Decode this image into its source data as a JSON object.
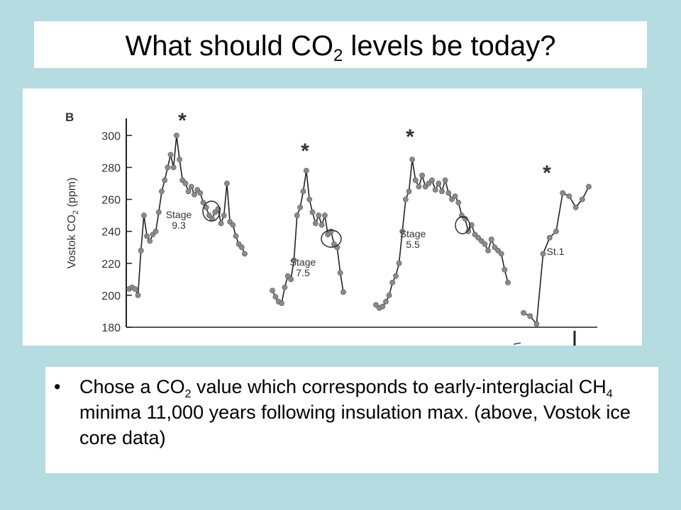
{
  "slide": {
    "title_main": "What should CO",
    "title_sub": "2",
    "title_rest": " levels be today?",
    "bullet": {
      "marker": "•",
      "part1": "Chose a CO",
      "sub1": "2",
      "part2": " value which corresponds to early-interglacial CH",
      "sub2": "4",
      "part3": " minima 11,000 years following insulation max. (above, Vostok ice core data)"
    }
  },
  "chart_data": {
    "type": "line",
    "panel_label": "B",
    "ylabel_main": "Vostok CO",
    "ylabel_sub": "2",
    "ylabel_rest": " (ppm)",
    "ylim": [
      180,
      305
    ],
    "yticks": [
      180,
      200,
      220,
      240,
      260,
      280,
      300
    ],
    "ytick_labels": [
      "180",
      "200",
      "220",
      "240",
      "260",
      "280",
      "300"
    ],
    "colors": {
      "line": "#222222",
      "marker": "#8a8a8a",
      "axis": "#222222",
      "text": "#333333"
    },
    "series": [
      {
        "label_lines": [
          "Stage",
          "9.3"
        ],
        "peak_marker": "*",
        "x": [
          0,
          1,
          2,
          3,
          4,
          5,
          6,
          7,
          8,
          9,
          10,
          11,
          12,
          13,
          14,
          15,
          16,
          17,
          18,
          19,
          20,
          21,
          22,
          23,
          24,
          25,
          26,
          27,
          28,
          29,
          30,
          31,
          32,
          33,
          34,
          35,
          36,
          37,
          38,
          39
        ],
        "y": [
          204,
          205,
          204,
          200,
          228,
          250,
          237,
          234,
          238,
          240,
          252,
          265,
          272,
          280,
          288,
          280,
          300,
          285,
          272,
          270,
          265,
          268,
          263,
          266,
          264,
          258,
          255,
          250,
          248,
          252,
          254,
          245,
          250,
          270,
          246,
          244,
          237,
          232,
          230,
          226
        ]
      },
      {
        "label_lines": [
          "Stage",
          "7.5"
        ],
        "peak_marker": "*",
        "x": [
          0,
          1,
          2,
          3,
          4,
          5,
          6,
          7,
          8,
          9,
          10,
          11,
          12,
          13,
          14,
          15,
          16,
          17,
          18,
          19,
          20,
          21,
          22,
          23
        ],
        "y": [
          203,
          199,
          196,
          195,
          205,
          212,
          210,
          222,
          250,
          255,
          265,
          278,
          260,
          252,
          245,
          250,
          244,
          250,
          238,
          240,
          232,
          230,
          214,
          202
        ]
      },
      {
        "label_lines": [
          "Stage",
          "5.5"
        ],
        "peak_marker": "*",
        "x": [
          0,
          1,
          2,
          3,
          4,
          5,
          6,
          7,
          8,
          9,
          10,
          11,
          12,
          13,
          14,
          15,
          16,
          17,
          18,
          19,
          20,
          21,
          22,
          23,
          24,
          25,
          26,
          27,
          28,
          29,
          30,
          31,
          32,
          33,
          34,
          35,
          36,
          37,
          38,
          39,
          40
        ],
        "y": [
          194,
          192,
          193,
          196,
          200,
          208,
          212,
          220,
          240,
          260,
          265,
          285,
          272,
          268,
          275,
          268,
          270,
          272,
          266,
          270,
          265,
          272,
          264,
          260,
          262,
          258,
          250,
          248,
          240,
          244,
          238,
          236,
          234,
          232,
          228,
          235,
          230,
          228,
          226,
          216,
          208
        ]
      },
      {
        "label_lines": [
          "St.1"
        ],
        "peak_marker": "*",
        "x": [
          0,
          1,
          2,
          3,
          4,
          5,
          6,
          7,
          8,
          9,
          10
        ],
        "y": [
          189,
          187,
          182,
          226,
          236,
          240,
          264,
          262,
          255,
          260,
          268
        ]
      }
    ]
  }
}
